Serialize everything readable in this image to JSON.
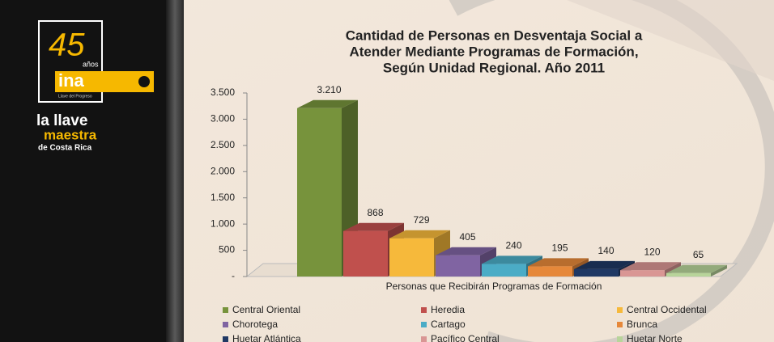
{
  "logo": {
    "number": "45",
    "years": "años",
    "brand": "ina",
    "tagline": "Llave del Progreso",
    "line1": "la llave",
    "line2": "maestra",
    "line3": "de Costa Rica"
  },
  "chart_data": {
    "type": "bar3d",
    "title": [
      "Cantidad de Personas en Desventaja Social a",
      "Atender Mediante Programas de Formación,",
      "Según Unidad Regional.  Año 2011"
    ],
    "x_label": "Personas que Recibirán Programas de Formación",
    "categories": [
      "Central Oriental",
      "Heredia",
      "Central Occidental",
      "Chorotega",
      "Cartago",
      "Brunca",
      "Huetar Atlántica",
      "Pacífico Central",
      "Huetar Norte"
    ],
    "values": [
      3210,
      868,
      729,
      405,
      240,
      195,
      140,
      120,
      65
    ],
    "value_labels": [
      "3.210",
      "868",
      "729",
      "405",
      "240",
      "195",
      "140",
      "120",
      "65"
    ],
    "colors": [
      "#77933c",
      "#c0504d",
      "#f6b93b",
      "#8064a2",
      "#4bacc6",
      "#e6883a",
      "#1f3864",
      "#d99694",
      "#b8d49a"
    ],
    "ylim": [
      0,
      3500
    ],
    "yticks": [
      {
        "value": 0,
        "label": "-"
      },
      500,
      {
        "value": 1000,
        "label": "1.000"
      },
      {
        "value": 1500,
        "label": "1.500"
      },
      {
        "value": 2000,
        "label": "2.000"
      },
      {
        "value": 2500,
        "label": "2.500"
      },
      {
        "value": 3000,
        "label": "3.000"
      },
      {
        "value": 3500,
        "label": "3.500"
      }
    ],
    "legend_columns": 3
  }
}
